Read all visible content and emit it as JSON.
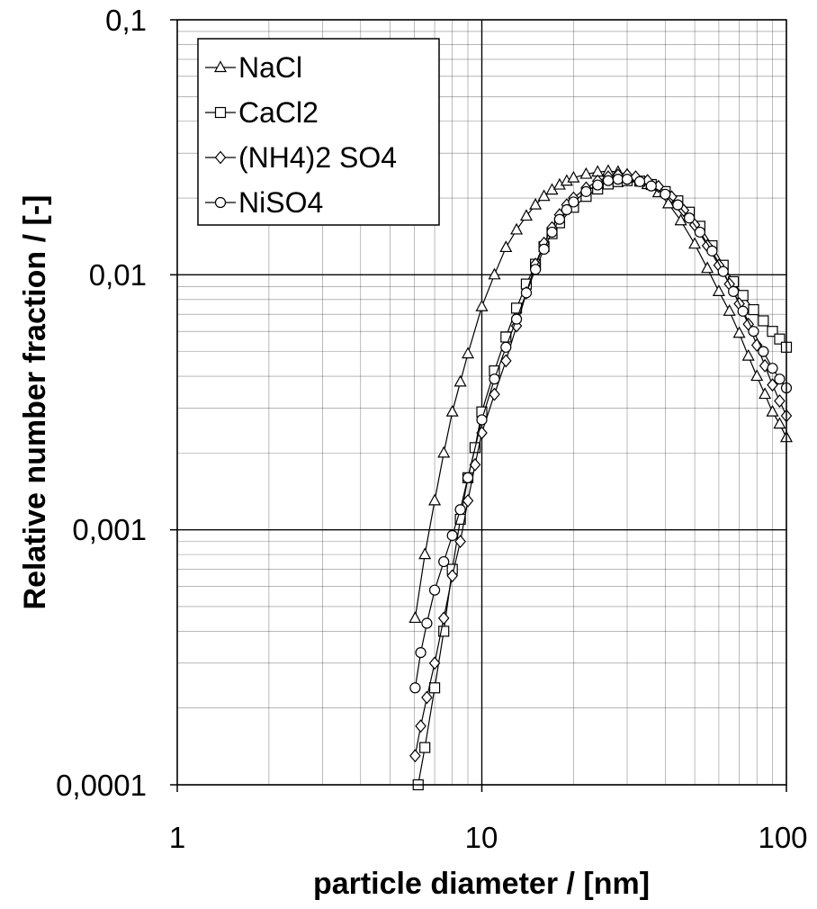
{
  "chart_data": {
    "type": "line",
    "xlabel": "particle diameter / [nm]",
    "ylabel": "Relative number fraction / [-]",
    "x_scale": "log",
    "y_scale": "log",
    "xlim": [
      1,
      100
    ],
    "ylim": [
      0.0001,
      0.1
    ],
    "x_tick_labels": [
      "1",
      "10",
      "100"
    ],
    "y_tick_labels": [
      "0,0001",
      "0,001",
      "0,01",
      "0,1"
    ],
    "grid": true,
    "legend_position": "top-left",
    "series": [
      {
        "name": "NaCl",
        "marker": "triangle",
        "color": "#000000",
        "points": [
          [
            6.04,
            0.00045
          ],
          [
            6.5,
            0.0008
          ],
          [
            7,
            0.0013
          ],
          [
            7.5,
            0.002
          ],
          [
            8,
            0.0029
          ],
          [
            8.5,
            0.0038
          ],
          [
            9,
            0.0049
          ],
          [
            10,
            0.0075
          ],
          [
            11,
            0.01
          ],
          [
            12,
            0.0128
          ],
          [
            13,
            0.015
          ],
          [
            14,
            0.017
          ],
          [
            15,
            0.0188
          ],
          [
            16,
            0.0203
          ],
          [
            17,
            0.0215
          ],
          [
            18,
            0.0225
          ],
          [
            19,
            0.0233
          ],
          [
            20,
            0.024
          ],
          [
            22,
            0.0248
          ],
          [
            24,
            0.0253
          ],
          [
            26,
            0.0255
          ],
          [
            28,
            0.0253
          ],
          [
            30,
            0.0247
          ],
          [
            32,
            0.024
          ],
          [
            35,
            0.0226
          ],
          [
            38,
            0.021
          ],
          [
            41,
            0.019
          ],
          [
            45,
            0.0163
          ],
          [
            50,
            0.0132
          ],
          [
            55,
            0.0106
          ],
          [
            60,
            0.0086
          ],
          [
            65,
            0.0072
          ],
          [
            70,
            0.0059
          ],
          [
            75,
            0.0048
          ],
          [
            80,
            0.004
          ],
          [
            85,
            0.0034
          ],
          [
            90,
            0.0029
          ],
          [
            95,
            0.0026
          ],
          [
            100,
            0.0023
          ]
        ]
      },
      {
        "name": "CaCl2",
        "marker": "square",
        "color": "#000000",
        "points": [
          [
            6.18,
            0.0001
          ],
          [
            6.5,
            0.00014
          ],
          [
            7,
            0.00024
          ],
          [
            7.5,
            0.0004
          ],
          [
            8,
            0.0007
          ],
          [
            8.5,
            0.0011
          ],
          [
            9,
            0.0016
          ],
          [
            9.5,
            0.0021
          ],
          [
            10,
            0.0029
          ],
          [
            11,
            0.0042
          ],
          [
            12,
            0.0057
          ],
          [
            13,
            0.0074
          ],
          [
            14,
            0.0092
          ],
          [
            15,
            0.011
          ],
          [
            16,
            0.0129
          ],
          [
            17,
            0.0145
          ],
          [
            18,
            0.016
          ],
          [
            20,
            0.0184
          ],
          [
            22,
            0.0203
          ],
          [
            24,
            0.0217
          ],
          [
            26,
            0.0227
          ],
          [
            28,
            0.0232
          ],
          [
            30,
            0.0234
          ],
          [
            33,
            0.0233
          ],
          [
            36,
            0.0226
          ],
          [
            40,
            0.0212
          ],
          [
            44,
            0.0195
          ],
          [
            48,
            0.0176
          ],
          [
            52,
            0.0155
          ],
          [
            57,
            0.013
          ],
          [
            62,
            0.0109
          ],
          [
            67,
            0.0094
          ],
          [
            72,
            0.0083
          ],
          [
            78,
            0.0073
          ],
          [
            84,
            0.0066
          ],
          [
            90,
            0.006
          ],
          [
            95,
            0.0056
          ],
          [
            100,
            0.0052
          ]
        ]
      },
      {
        "name": "(NH4)2 SO4",
        "marker": "diamond",
        "color": "#000000",
        "points": [
          [
            6.04,
            0.00013
          ],
          [
            6.3,
            0.00017
          ],
          [
            6.6,
            0.00022
          ],
          [
            7,
            0.0003
          ],
          [
            7.5,
            0.00045
          ],
          [
            8,
            0.00066
          ],
          [
            8.5,
            0.0009
          ],
          [
            9,
            0.0013
          ],
          [
            9.5,
            0.0018
          ],
          [
            10,
            0.0024
          ],
          [
            11,
            0.0034
          ],
          [
            12,
            0.0046
          ],
          [
            13,
            0.0063
          ],
          [
            14,
            0.0085
          ],
          [
            15,
            0.011
          ],
          [
            16,
            0.0133
          ],
          [
            17,
            0.0153
          ],
          [
            18,
            0.0172
          ],
          [
            19,
            0.0188
          ],
          [
            20,
            0.02
          ],
          [
            22,
            0.0219
          ],
          [
            24,
            0.0233
          ],
          [
            26,
            0.0242
          ],
          [
            28,
            0.0246
          ],
          [
            30,
            0.0246
          ],
          [
            32,
            0.0242
          ],
          [
            35,
            0.0234
          ],
          [
            38,
            0.0222
          ],
          [
            42,
            0.0202
          ],
          [
            46,
            0.0179
          ],
          [
            50,
            0.0157
          ],
          [
            55,
            0.013
          ],
          [
            60,
            0.0109
          ],
          [
            65,
            0.0092
          ],
          [
            70,
            0.0077
          ],
          [
            75,
            0.0064
          ],
          [
            80,
            0.0053
          ],
          [
            85,
            0.0044
          ],
          [
            90,
            0.0037
          ],
          [
            95,
            0.0032
          ],
          [
            100,
            0.0028
          ]
        ]
      },
      {
        "name": "NiSO4",
        "marker": "circle",
        "color": "#000000",
        "points": [
          [
            6.04,
            0.00024
          ],
          [
            6.3,
            0.00033
          ],
          [
            6.6,
            0.00043
          ],
          [
            7,
            0.00058
          ],
          [
            7.5,
            0.00075
          ],
          [
            8,
            0.00095
          ],
          [
            8.5,
            0.0012
          ],
          [
            9,
            0.0016
          ],
          [
            10,
            0.0027
          ],
          [
            11,
            0.0039
          ],
          [
            12,
            0.0052
          ],
          [
            13,
            0.0067
          ],
          [
            14,
            0.0085
          ],
          [
            15,
            0.0105
          ],
          [
            16,
            0.0126
          ],
          [
            17,
            0.0147
          ],
          [
            18,
            0.0165
          ],
          [
            19,
            0.018
          ],
          [
            20,
            0.0193
          ],
          [
            22,
            0.0212
          ],
          [
            24,
            0.0225
          ],
          [
            26,
            0.0234
          ],
          [
            28,
            0.0237
          ],
          [
            30,
            0.0237
          ],
          [
            33,
            0.0232
          ],
          [
            36,
            0.0223
          ],
          [
            40,
            0.0207
          ],
          [
            44,
            0.0188
          ],
          [
            48,
            0.0167
          ],
          [
            52,
            0.0147
          ],
          [
            57,
            0.0124
          ],
          [
            62,
            0.0103
          ],
          [
            67,
            0.0086
          ],
          [
            72,
            0.0072
          ],
          [
            78,
            0.006
          ],
          [
            84,
            0.005
          ],
          [
            90,
            0.0043
          ],
          [
            95,
            0.0039
          ],
          [
            100,
            0.0036
          ]
        ]
      }
    ]
  }
}
